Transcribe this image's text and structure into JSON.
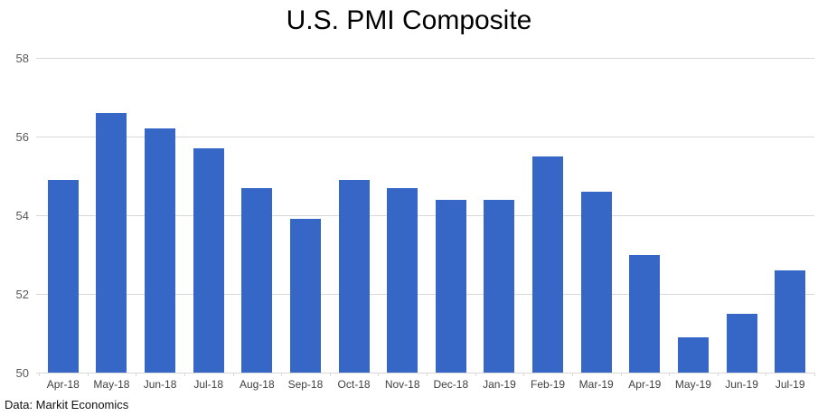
{
  "colors": {
    "bar": "#3667C6",
    "gridline": "#D9D9D9",
    "y_label": "#595959",
    "x_label": "#404040",
    "title": "#000000"
  },
  "chart_data": {
    "type": "bar",
    "title": "U.S. PMI Composite",
    "source": "Data: Markit Economics",
    "xlabel": "",
    "ylabel": "",
    "categories": [
      "Apr-18",
      "May-18",
      "Jun-18",
      "Jul-18",
      "Aug-18",
      "Sep-18",
      "Oct-18",
      "Nov-18",
      "Dec-18",
      "Jan-19",
      "Feb-19",
      "Mar-19",
      "Apr-19",
      "May-19",
      "Jun-19",
      "Jul-19"
    ],
    "values": [
      54.9,
      56.6,
      56.2,
      55.7,
      54.7,
      53.9,
      54.9,
      54.7,
      54.4,
      54.4,
      55.5,
      54.6,
      53.0,
      50.9,
      51.5,
      52.6
    ],
    "ylim": [
      50,
      58
    ],
    "yticks": [
      50,
      52,
      54,
      56,
      58
    ],
    "grid": true,
    "legend_position": "none"
  }
}
